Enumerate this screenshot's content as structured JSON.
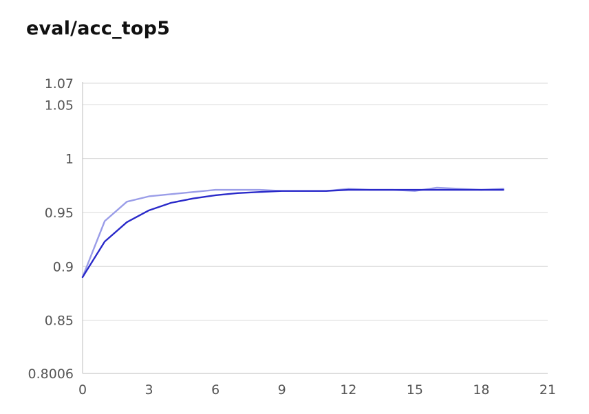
{
  "chart_data": {
    "type": "line",
    "title": "eval/acc_top5",
    "xlabel": "",
    "ylabel": "",
    "xlim": [
      0,
      21
    ],
    "ylim": [
      0.8006,
      1.07
    ],
    "x_ticks": [
      "0",
      "3",
      "6",
      "9",
      "12",
      "15",
      "18",
      "21"
    ],
    "y_ticks": [
      "0.8006",
      "0.85",
      "0.9",
      "0.95",
      "1",
      "1.05",
      "1.07"
    ],
    "grid": true,
    "legend": "none",
    "series": [
      {
        "color": "#9a9de8",
        "x": [
          0,
          1,
          2,
          3,
          4,
          5,
          6,
          7,
          8,
          9,
          10,
          11,
          12,
          13,
          14,
          15,
          16,
          17,
          18,
          19
        ],
        "values": [
          0.89,
          0.942,
          0.96,
          0.965,
          0.967,
          0.969,
          0.971,
          0.971,
          0.971,
          0.97,
          0.97,
          0.97,
          0.972,
          0.971,
          0.971,
          0.97,
          0.973,
          0.972,
          0.971,
          0.972
        ]
      },
      {
        "color": "#2929c9",
        "x": [
          0,
          1,
          2,
          3,
          4,
          5,
          6,
          7,
          8,
          9,
          10,
          11,
          12,
          13,
          14,
          15,
          16,
          17,
          18,
          19
        ],
        "values": [
          0.89,
          0.923,
          0.941,
          0.952,
          0.959,
          0.963,
          0.966,
          0.968,
          0.969,
          0.97,
          0.97,
          0.97,
          0.971,
          0.971,
          0.971,
          0.971,
          0.971,
          0.971,
          0.971,
          0.971
        ]
      }
    ]
  }
}
